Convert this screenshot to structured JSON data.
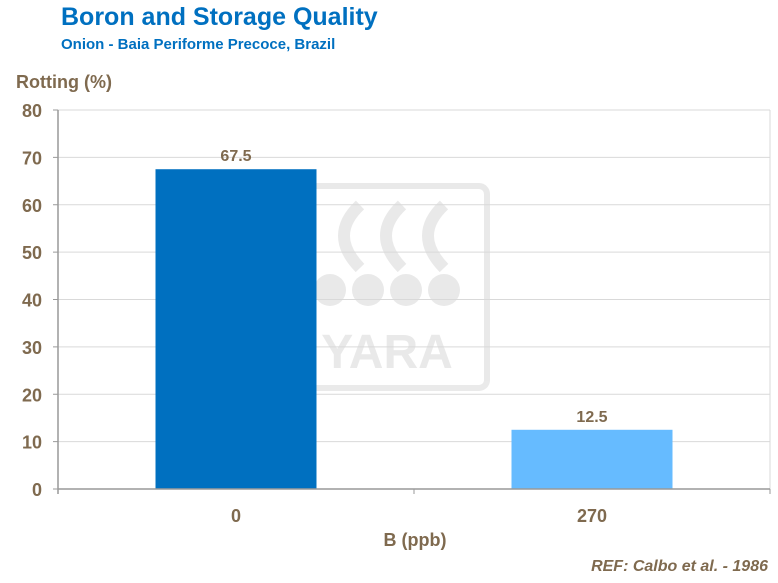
{
  "chart_data": {
    "type": "bar",
    "title": "Boron and Storage Quality",
    "subtitle": "Onion - Baia Periforme Precoce, Brazil",
    "ylabel": "Rotting (%)",
    "xlabel": "B (ppb)",
    "categories": [
      "0",
      "270"
    ],
    "values": [
      67.5,
      12.5
    ],
    "data_labels": [
      "67.5",
      "12.5"
    ],
    "bar_colors": [
      "#0070C0",
      "#66BBFF"
    ],
    "ylim": [
      0,
      80
    ],
    "yticks": [
      "0",
      "10",
      "20",
      "30",
      "40",
      "50",
      "60",
      "70",
      "80"
    ],
    "grid": true,
    "reference": "REF: Calbo et al. - 1986",
    "watermark": "YARA"
  }
}
